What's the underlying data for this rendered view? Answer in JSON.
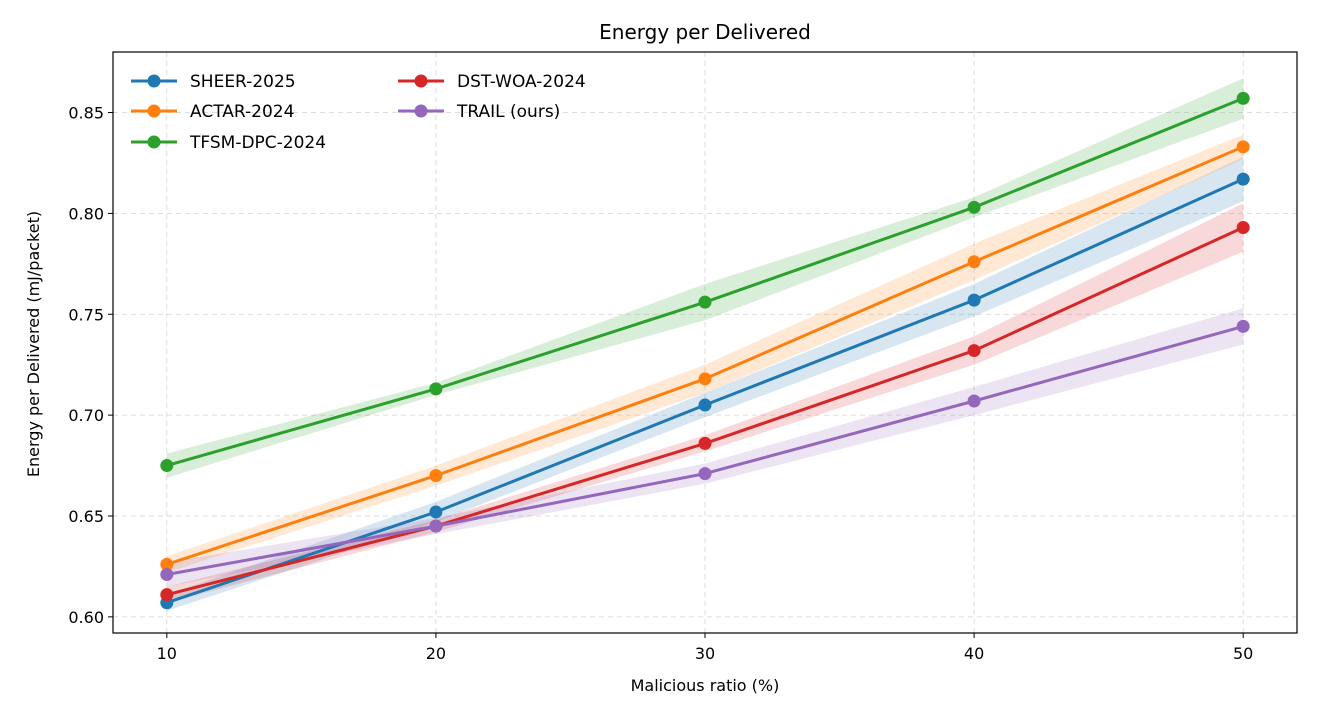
{
  "chart_data": {
    "type": "line",
    "title": "Energy per Delivered",
    "xlabel": "Malicious ratio (%)",
    "ylabel": "Energy per Delivered (mJ/packet)",
    "x": [
      10,
      20,
      30,
      40,
      50
    ],
    "xlim": [
      8,
      52
    ],
    "ylim": [
      0.592,
      0.88
    ],
    "xticks": [
      10,
      20,
      30,
      40,
      50
    ],
    "yticks": [
      0.6,
      0.65,
      0.7,
      0.75,
      0.8,
      0.85
    ],
    "grid": true,
    "legend_position": "upper-left",
    "series": [
      {
        "name": "SHEER-2025",
        "color": "#1f77b4",
        "values": [
          0.607,
          0.652,
          0.705,
          0.757,
          0.817
        ],
        "band": [
          0.004,
          0.005,
          0.006,
          0.008,
          0.011
        ]
      },
      {
        "name": "ACTAR-2024",
        "color": "#ff7f0e",
        "values": [
          0.626,
          0.67,
          0.718,
          0.776,
          0.833
        ],
        "band": [
          0.004,
          0.005,
          0.007,
          0.009,
          0.006
        ]
      },
      {
        "name": "TFSM-DPC-2024",
        "color": "#2ca02c",
        "values": [
          0.675,
          0.713,
          0.756,
          0.803,
          0.857
        ],
        "band": [
          0.006,
          0.003,
          0.009,
          0.005,
          0.01
        ]
      },
      {
        "name": "DST-WOA-2024",
        "color": "#d62728",
        "values": [
          0.611,
          0.645,
          0.686,
          0.732,
          0.793
        ],
        "band": [
          0.004,
          0.003,
          0.004,
          0.007,
          0.012
        ]
      },
      {
        "name": "TRAIL (ours)",
        "color": "#9467bd",
        "values": [
          0.621,
          0.645,
          0.671,
          0.707,
          0.744
        ],
        "band": [
          0.006,
          0.004,
          0.005,
          0.007,
          0.009
        ]
      }
    ]
  }
}
